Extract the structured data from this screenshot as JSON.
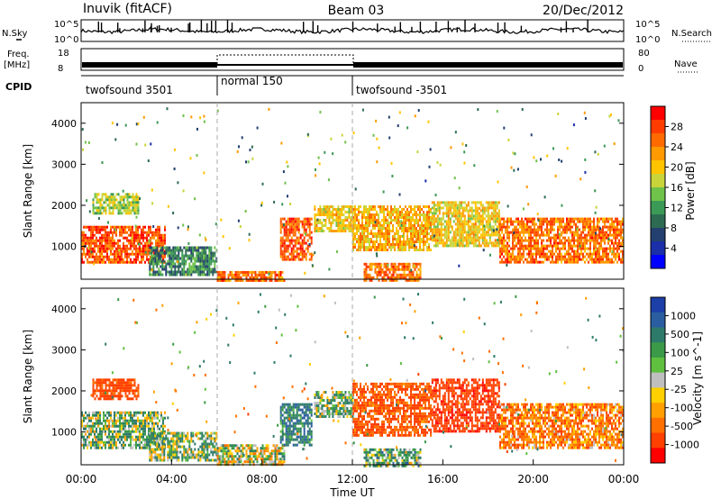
{
  "header": {
    "site": "Inuvik (fitACF)",
    "beam": "Beam 03",
    "date": "20/Dec/2012"
  },
  "strips": {
    "nsky_label": "N.Sky",
    "nsearch_label": "N.Search",
    "nsky_ticks": [
      "10^5",
      "10^0"
    ],
    "nsearch_ticks": [
      "10^5",
      "10^0"
    ],
    "freq_label": "Freq.",
    "freq_unit": "[MHz]",
    "freq_ticks": [
      "18",
      "8"
    ],
    "nave_label": "Nave",
    "nave_ticks": [
      "80",
      "0"
    ],
    "cpid_label": "CPID",
    "cpid_segments": [
      {
        "label": "twofsound 3501",
        "start": 0,
        "end": 6
      },
      {
        "label": "normal 150",
        "start": 6,
        "end": 12
      },
      {
        "label": "twofsound -3501",
        "start": 12,
        "end": 24
      }
    ]
  },
  "power_panel": {
    "ylabel": "Slant Range [km]",
    "cbar_label": "Power [dB]",
    "cbar_ticks": [
      "28",
      "24",
      "20",
      "16",
      "12",
      "8",
      "4"
    ],
    "cbar_colors": [
      "#ff0000",
      "#ff3c00",
      "#ff6a00",
      "#ff9a00",
      "#ffc400",
      "#c9d43a",
      "#6fc24a",
      "#3b9a55",
      "#2d6c52",
      "#23406e",
      "#1a2fa8",
      "#0000ff"
    ]
  },
  "velocity_panel": {
    "ylabel": "Slant Range [km]",
    "cbar_label": "Velocity [m s^-1]",
    "cbar_ticks": [
      "1000",
      "500",
      "100",
      "25",
      "-25",
      "-100",
      "-500",
      "-1000"
    ],
    "cbar_colors": [
      "#1c3fa8",
      "#2a5ea0",
      "#2e7a6a",
      "#3a9a48",
      "#5fc040",
      "#bfbfbf",
      "#ffd000",
      "#ffa000",
      "#ff7000",
      "#ff4000",
      "#ff0000"
    ]
  },
  "xaxis": {
    "label": "Time UT",
    "ticks": [
      "00:00",
      "04:00",
      "08:00",
      "12:00",
      "16:00",
      "20:00",
      "00:00"
    ]
  },
  "chart_data": [
    {
      "type": "heatmap",
      "title": "Power",
      "xlabel": "Time UT",
      "ylabel": "Slant Range [km]",
      "xlim": [
        0,
        24
      ],
      "ylim": [
        200,
        4500
      ],
      "yticks": [
        1000,
        2000,
        3000,
        4000
      ],
      "colorbar": {
        "label": "Power [dB]",
        "range": [
          0,
          32
        ],
        "ticks": [
          4,
          8,
          12,
          16,
          20,
          24,
          28
        ]
      },
      "echo_regions": [
        {
          "t0": 0.0,
          "t1": 3.7,
          "r0": 600,
          "r1": 1500,
          "level": 28
        },
        {
          "t0": 0.5,
          "t1": 2.5,
          "r0": 1800,
          "r1": 2300,
          "level": 16
        },
        {
          "t0": 3.0,
          "t1": 6.0,
          "r0": 300,
          "r1": 1000,
          "level": 10
        },
        {
          "t0": 6.0,
          "t1": 9.0,
          "r0": 200,
          "r1": 400,
          "level": 26
        },
        {
          "t0": 8.8,
          "t1": 10.2,
          "r0": 700,
          "r1": 1700,
          "level": 28
        },
        {
          "t0": 10.3,
          "t1": 12.0,
          "r0": 1400,
          "r1": 2000,
          "level": 20
        },
        {
          "t0": 12.0,
          "t1": 15.5,
          "r0": 900,
          "r1": 2000,
          "level": 22
        },
        {
          "t0": 12.5,
          "t1": 15.0,
          "r0": 200,
          "r1": 600,
          "level": 26
        },
        {
          "t0": 15.5,
          "t1": 18.5,
          "r0": 1000,
          "r1": 2100,
          "level": 20
        },
        {
          "t0": 18.5,
          "t1": 24.0,
          "r0": 600,
          "r1": 1700,
          "level": 26
        }
      ]
    },
    {
      "type": "heatmap",
      "title": "Velocity",
      "xlabel": "Time UT",
      "ylabel": "Slant Range [km]",
      "xlim": [
        0,
        24
      ],
      "ylim": [
        200,
        4500
      ],
      "yticks": [
        1000,
        2000,
        3000,
        4000
      ],
      "colorbar": {
        "label": "Velocity [m s^-1]",
        "ticks": [
          1000,
          500,
          100,
          25,
          -25,
          -100,
          -500,
          -1000
        ]
      },
      "echo_regions": [
        {
          "t0": 0.0,
          "t1": 3.7,
          "r0": 600,
          "r1": 1500,
          "v": 100
        },
        {
          "t0": 0.5,
          "t1": 2.5,
          "r0": 1800,
          "r1": 2300,
          "v": -500
        },
        {
          "t0": 3.0,
          "t1": 6.0,
          "r0": 300,
          "r1": 1000,
          "v": 100
        },
        {
          "t0": 6.0,
          "t1": 9.0,
          "r0": 200,
          "r1": 700,
          "v": 0
        },
        {
          "t0": 8.8,
          "t1": 10.2,
          "r0": 700,
          "r1": 1700,
          "v": 300
        },
        {
          "t0": 10.3,
          "t1": 12.0,
          "r0": 1400,
          "r1": 2000,
          "v": 100
        },
        {
          "t0": 12.0,
          "t1": 15.5,
          "r0": 900,
          "r1": 2200,
          "v": -400
        },
        {
          "t0": 12.5,
          "t1": 15.0,
          "r0": 200,
          "r1": 600,
          "v": 150
        },
        {
          "t0": 15.5,
          "t1": 18.5,
          "r0": 1000,
          "r1": 2300,
          "v": -600
        },
        {
          "t0": 18.5,
          "t1": 24.0,
          "r0": 600,
          "r1": 1700,
          "v": -250
        }
      ]
    }
  ]
}
